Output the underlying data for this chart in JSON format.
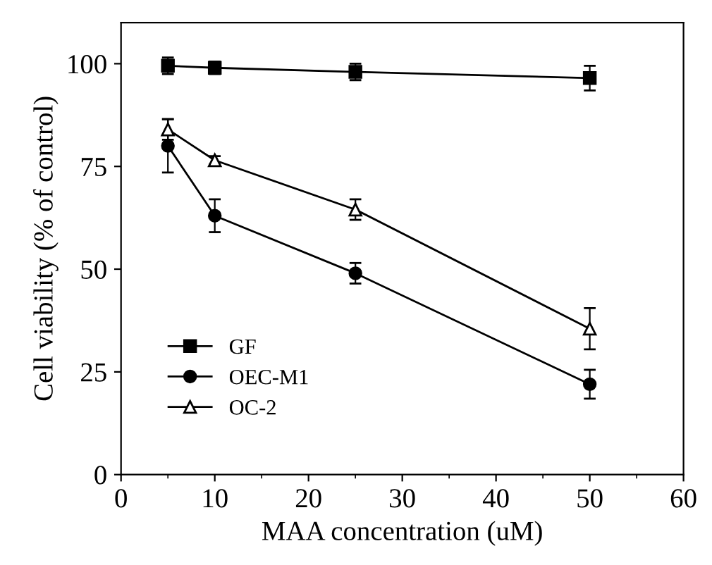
{
  "chart_data": {
    "type": "line",
    "xlabel": "MAA concentration (uM)",
    "ylabel": "Cell viability (% of control)",
    "x": [
      5,
      10,
      25,
      50
    ],
    "series": [
      {
        "name": "GF",
        "color": "#000000",
        "marker": "square",
        "values": [
          99.5,
          99,
          98,
          96.5
        ],
        "errors": [
          2,
          1.5,
          2,
          3
        ]
      },
      {
        "name": "OEC-M1",
        "color": "#000000",
        "marker": "circle",
        "values": [
          80,
          63,
          49,
          22
        ],
        "errors": [
          6.5,
          4,
          2.5,
          3.5
        ]
      },
      {
        "name": "OC-2",
        "color": "#000000",
        "marker": "triangle",
        "values": [
          84,
          76.5,
          64.5,
          35.5
        ],
        "errors": [
          2.5,
          1,
          2.5,
          5
        ]
      }
    ],
    "xlim": [
      0,
      60
    ],
    "xticks": [
      0,
      10,
      20,
      30,
      40,
      50,
      60
    ],
    "ylim": [
      0,
      110
    ],
    "yticks": [
      0,
      25,
      50,
      75,
      100
    ],
    "legend": "bottom left",
    "grid": false,
    "line_style": "solid"
  }
}
